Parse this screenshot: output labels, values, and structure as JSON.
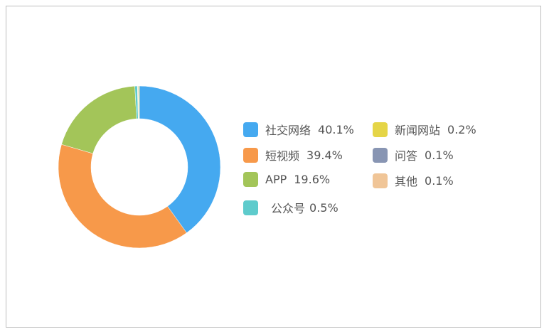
{
  "chart_data": {
    "type": "pie",
    "donut": true,
    "legend_position": "right",
    "slices": [
      {
        "label": "社交网络",
        "value": 40.1,
        "value_text": "40.1%",
        "color": "#45a9f0"
      },
      {
        "label": "短视频",
        "value": 39.4,
        "value_text": "39.4%",
        "color": "#f7994a"
      },
      {
        "label": "APP",
        "value": 19.6,
        "value_text": "19.6%",
        "color": "#a3c559"
      },
      {
        "label": "公众号",
        "value": 0.5,
        "value_text": "0.5%",
        "color": "#5ecbcc"
      },
      {
        "label": "其他",
        "value": 0.1,
        "value_text": "0.1%",
        "color": "#f0c597"
      },
      {
        "label": "问答",
        "value": 0.1,
        "value_text": "0.1%",
        "color": "#8895b3"
      },
      {
        "label": "新闻网站",
        "value": 0.2,
        "value_text": "0.2%",
        "color": "#e5d547"
      }
    ]
  }
}
